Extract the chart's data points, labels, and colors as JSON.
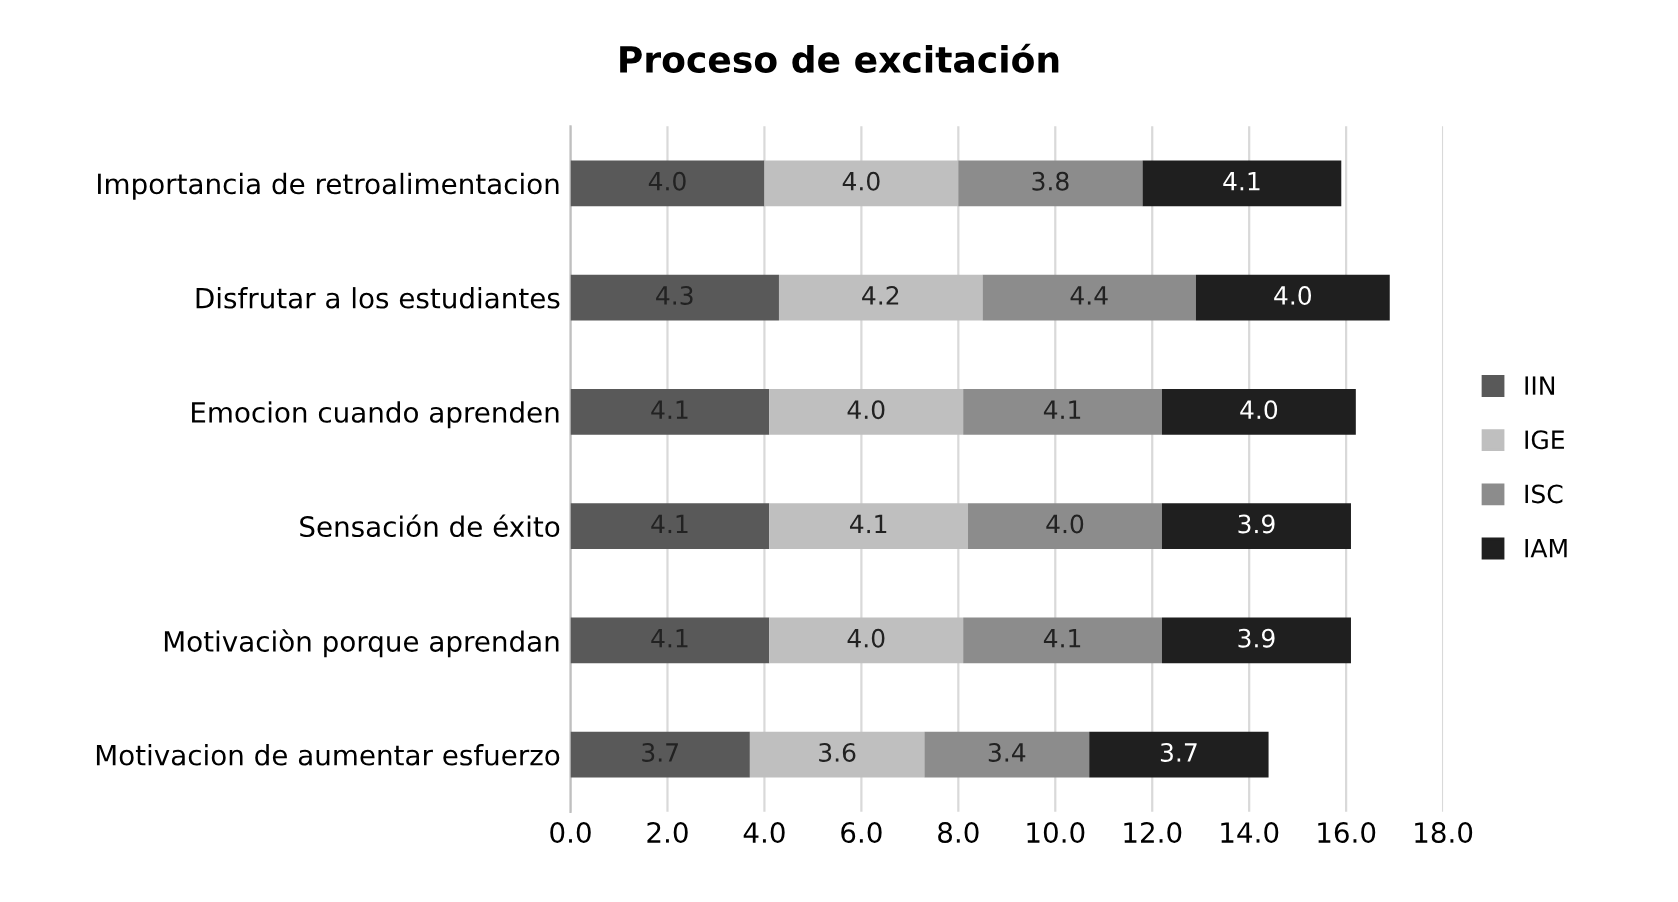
{
  "chart_data": {
    "type": "bar",
    "orientation": "horizontal",
    "stacked": true,
    "title": "Proceso de excitación",
    "categories": [
      "Importancia de retroalimentacion",
      "Disfrutar a los estudiantes",
      "Emocion cuando aprenden",
      "Sensación de éxito",
      "Motivaciòn porque aprendan",
      "Motivacion de aumentar esfuerzo"
    ],
    "series": [
      {
        "name": "IIN",
        "color": "#595959",
        "values": [
          4.0,
          4.3,
          4.1,
          4.1,
          4.1,
          3.7
        ],
        "value_labels": [
          "4.0",
          "4.3",
          "4.1",
          "4.1",
          "4.1",
          "3.7"
        ]
      },
      {
        "name": "IGE",
        "color": "#bfbfbf",
        "values": [
          4.0,
          4.2,
          4.0,
          4.1,
          4.0,
          3.6
        ],
        "value_labels": [
          "4.0",
          "4.2",
          "4.0",
          "4.1",
          "4.0",
          "3.6"
        ]
      },
      {
        "name": "ISC",
        "color": "#8c8c8c",
        "values": [
          3.8,
          4.4,
          4.1,
          4.0,
          4.1,
          3.4
        ],
        "value_labels": [
          "3.8",
          "4.4",
          "4.1",
          "4.0",
          "4.1",
          "3.4"
        ]
      },
      {
        "name": "IAM",
        "color": "#1f1f1f",
        "values": [
          4.1,
          4.0,
          4.0,
          3.9,
          3.9,
          3.7
        ],
        "value_labels": [
          "4.1",
          "4.0",
          "4.0",
          "3.9",
          "3.9",
          "3.7"
        ]
      }
    ],
    "xlim": [
      0,
      18
    ],
    "xticks": [
      {
        "value": 0,
        "label": "0.0"
      },
      {
        "value": 2,
        "label": "2.0"
      },
      {
        "value": 4,
        "label": "4.0"
      },
      {
        "value": 6,
        "label": "6.0"
      },
      {
        "value": 8,
        "label": "8.0"
      },
      {
        "value": 10,
        "label": "10.0"
      },
      {
        "value": 12,
        "label": "12.0"
      },
      {
        "value": 14,
        "label": "14.0"
      },
      {
        "value": 16,
        "label": "16.0"
      },
      {
        "value": 18,
        "label": "18.0"
      }
    ],
    "grid": "x",
    "legend": "right"
  }
}
